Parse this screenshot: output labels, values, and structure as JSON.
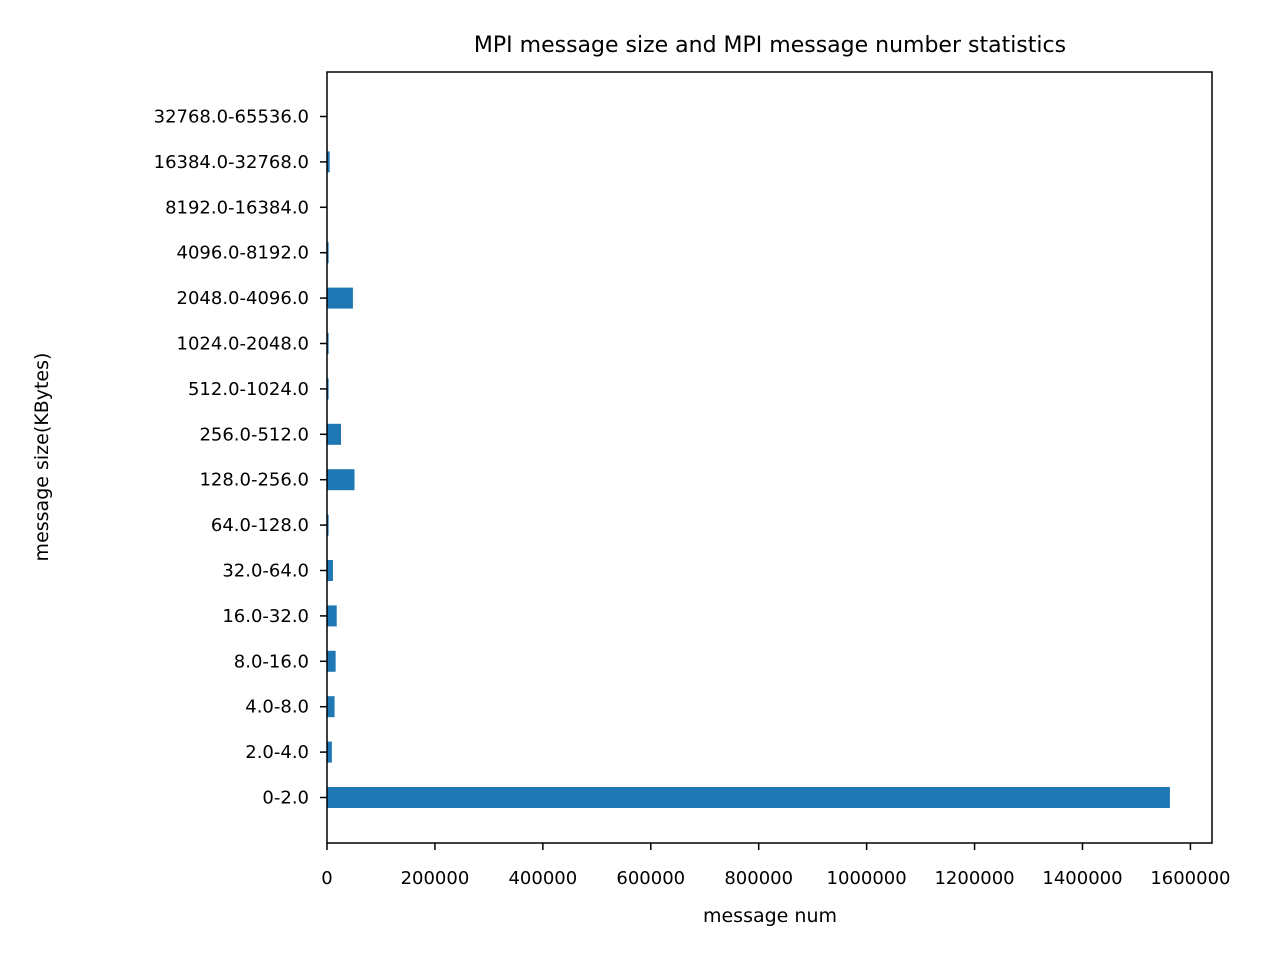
{
  "chart_data": {
    "type": "bar",
    "orientation": "horizontal",
    "title": "MPI message size and MPI message number statistics",
    "xlabel": "message num",
    "ylabel": "message size(KBytes)",
    "categories": [
      "0-2.0",
      "2.0-4.0",
      "4.0-8.0",
      "8.0-16.0",
      "16.0-32.0",
      "32.0-64.0",
      "64.0-128.0",
      "128.0-256.0",
      "256.0-512.0",
      "512.0-1024.0",
      "1024.0-2048.0",
      "2048.0-4096.0",
      "4096.0-8192.0",
      "8192.0-16384.0",
      "16384.0-32768.0",
      "32768.0-65536.0"
    ],
    "values": [
      1562000,
      9000,
      14000,
      16000,
      18000,
      11000,
      3000,
      51000,
      26000,
      3000,
      3000,
      48000,
      3000,
      500,
      5000,
      500
    ],
    "xlim": [
      0,
      1640000
    ],
    "xticks": [
      0,
      200000,
      400000,
      600000,
      800000,
      1000000,
      1200000,
      1400000,
      1600000
    ],
    "xtick_labels": [
      "0",
      "200000",
      "400000",
      "600000",
      "800000",
      "1000000",
      "1200000",
      "1400000",
      "1600000"
    ],
    "bar_color": "#1f77b4",
    "grid": false,
    "legend": "none"
  }
}
